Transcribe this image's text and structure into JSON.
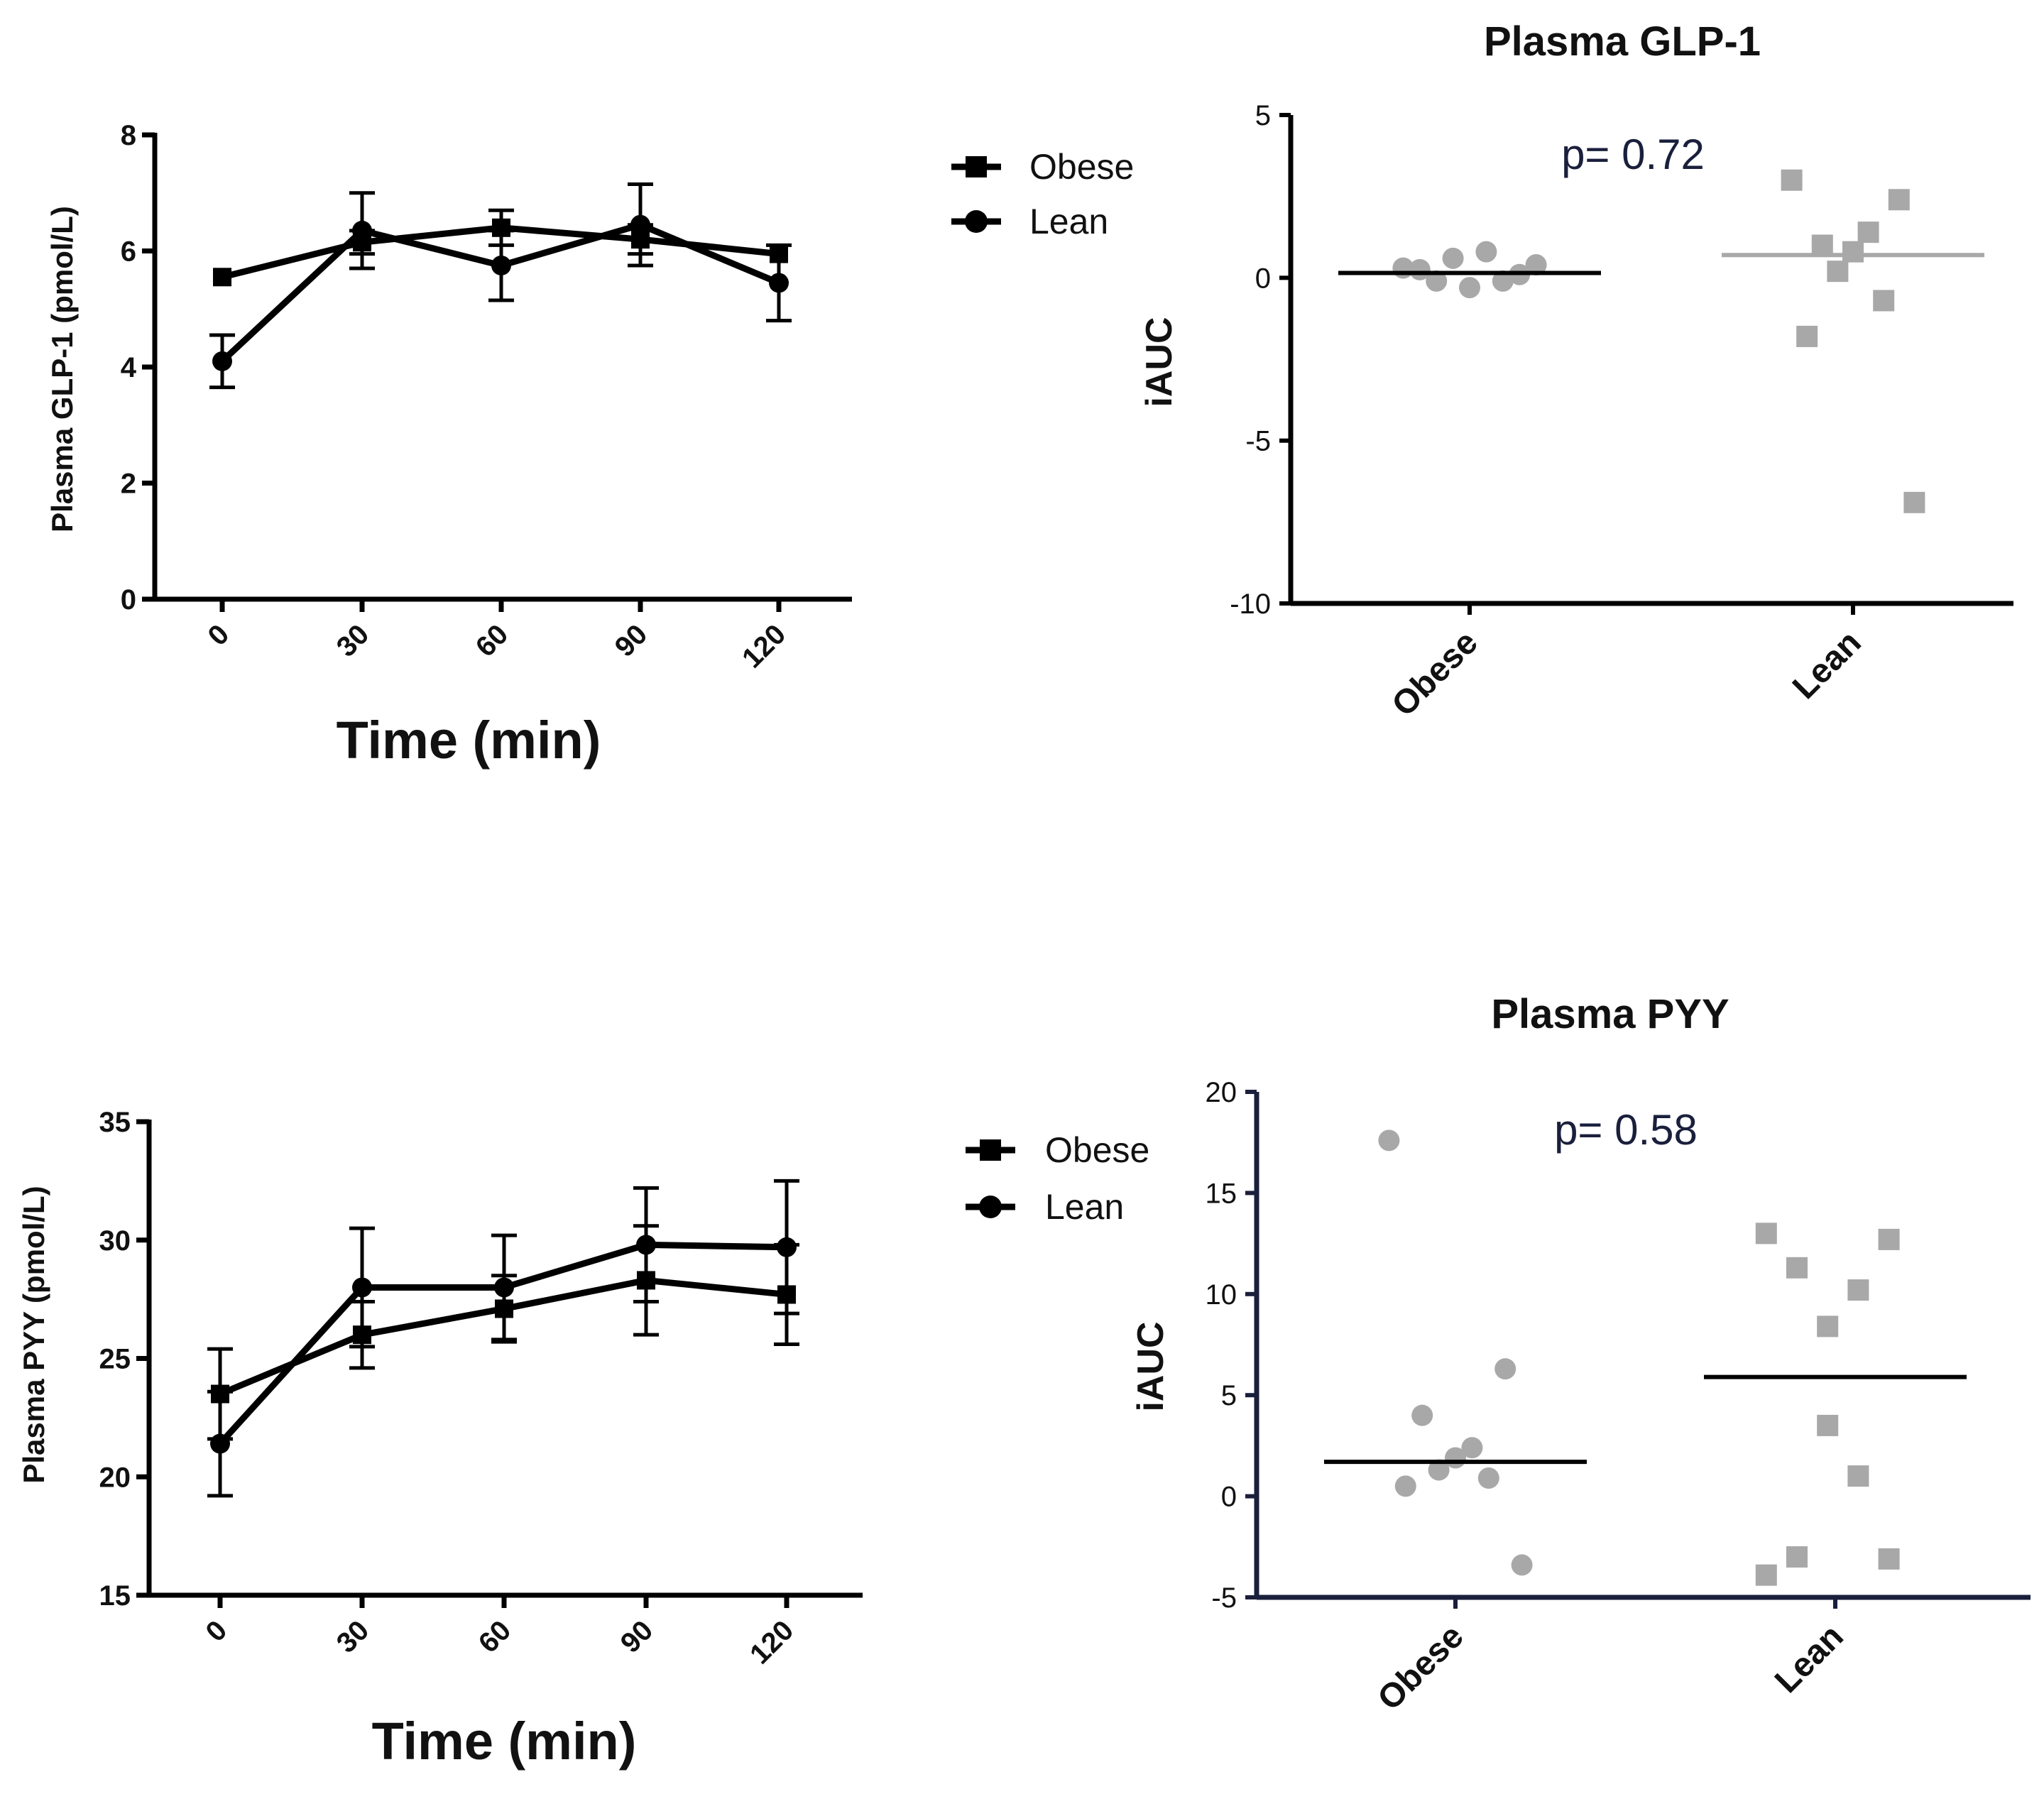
{
  "chart_data": [
    {
      "type": "line",
      "title": "",
      "xlabel": "Time (min)",
      "ylabel": "Plasma  GLP-1 (pmol/L)",
      "x": [
        0,
        30,
        60,
        90,
        120
      ],
      "xticks": [
        "0",
        "30",
        "60",
        "90",
        "120"
      ],
      "ylim": [
        0,
        8
      ],
      "yticks": [
        0,
        2,
        4,
        6,
        8
      ],
      "series": [
        {
          "name": "Obese",
          "marker": "square",
          "values": [
            5.55,
            6.15,
            6.4,
            6.2,
            5.95
          ],
          "err": [
            0.0,
            0.2,
            0.3,
            0.25,
            0.0
          ]
        },
        {
          "name": "Lean",
          "marker": "circle",
          "values": [
            4.1,
            6.35,
            5.75,
            6.45,
            5.45
          ],
          "err": [
            0.45,
            0.65,
            0.6,
            0.7,
            0.65
          ]
        }
      ],
      "legend": [
        "Obese",
        "Lean"
      ]
    },
    {
      "type": "scatter",
      "title": "Plasma GLP-1",
      "xlabel": "",
      "ylabel": "iAUC",
      "categories": [
        "Obese",
        "Lean"
      ],
      "ylim": [
        -10,
        5
      ],
      "yticks": [
        -10,
        -5,
        0,
        5
      ],
      "annotation": "p= 0.72",
      "colors": {
        "points": "#a8a8a8",
        "obese_mean": "#000000",
        "lean_mean": "#a8a8a8"
      },
      "series": [
        {
          "name": "Obese",
          "marker": "circle",
          "values": [
            0.3,
            0.1,
            -0.1,
            0.8,
            -0.3,
            0.6,
            -0.1,
            0.25,
            0.4
          ],
          "mean": 0.15
        },
        {
          "name": "Lean",
          "marker": "square",
          "values": [
            3.0,
            2.4,
            1.0,
            1.4,
            0.8,
            0.2,
            -0.7,
            -1.8,
            -6.9
          ],
          "mean": 0.7
        }
      ]
    },
    {
      "type": "line",
      "title": "",
      "xlabel": "Time (min)",
      "ylabel": "Plasma PYY (pmol/L)",
      "x": [
        0,
        30,
        60,
        90,
        120
      ],
      "xticks": [
        "0",
        "30",
        "60",
        "90",
        "120"
      ],
      "ylim": [
        15,
        35
      ],
      "yticks": [
        15,
        20,
        25,
        30,
        35
      ],
      "series": [
        {
          "name": "Obese",
          "marker": "square",
          "values": [
            23.5,
            26.0,
            27.1,
            28.3,
            27.7
          ],
          "err": [
            1.9,
            1.4,
            1.4,
            2.3,
            2.1
          ]
        },
        {
          "name": "Lean",
          "marker": "circle",
          "values": [
            21.4,
            28.0,
            28.0,
            29.8,
            29.7
          ],
          "err": [
            2.2,
            2.5,
            2.2,
            2.4,
            2.8
          ]
        }
      ],
      "legend": [
        "Obese",
        "Lean"
      ]
    },
    {
      "type": "scatter",
      "title": "Plasma PYY",
      "xlabel": "",
      "ylabel": "iAUC",
      "categories": [
        "Obese",
        "Lean"
      ],
      "ylim": [
        -5,
        20
      ],
      "yticks": [
        -5,
        0,
        5,
        10,
        15,
        20
      ],
      "annotation": "p= 0.58",
      "colors": {
        "points": "#a8a8a8",
        "obese_mean": "#000000",
        "lean_mean": "#000000"
      },
      "series": [
        {
          "name": "Obese",
          "marker": "circle",
          "values": [
            17.6,
            6.3,
            4.0,
            2.4,
            1.9,
            1.3,
            0.9,
            0.5,
            -3.4
          ],
          "mean": 1.7
        },
        {
          "name": "Lean",
          "marker": "square",
          "values": [
            13.0,
            12.7,
            11.3,
            10.2,
            8.4,
            3.5,
            1.0,
            -3.0,
            -3.1,
            -3.9
          ],
          "mean": 5.9
        }
      ]
    }
  ]
}
